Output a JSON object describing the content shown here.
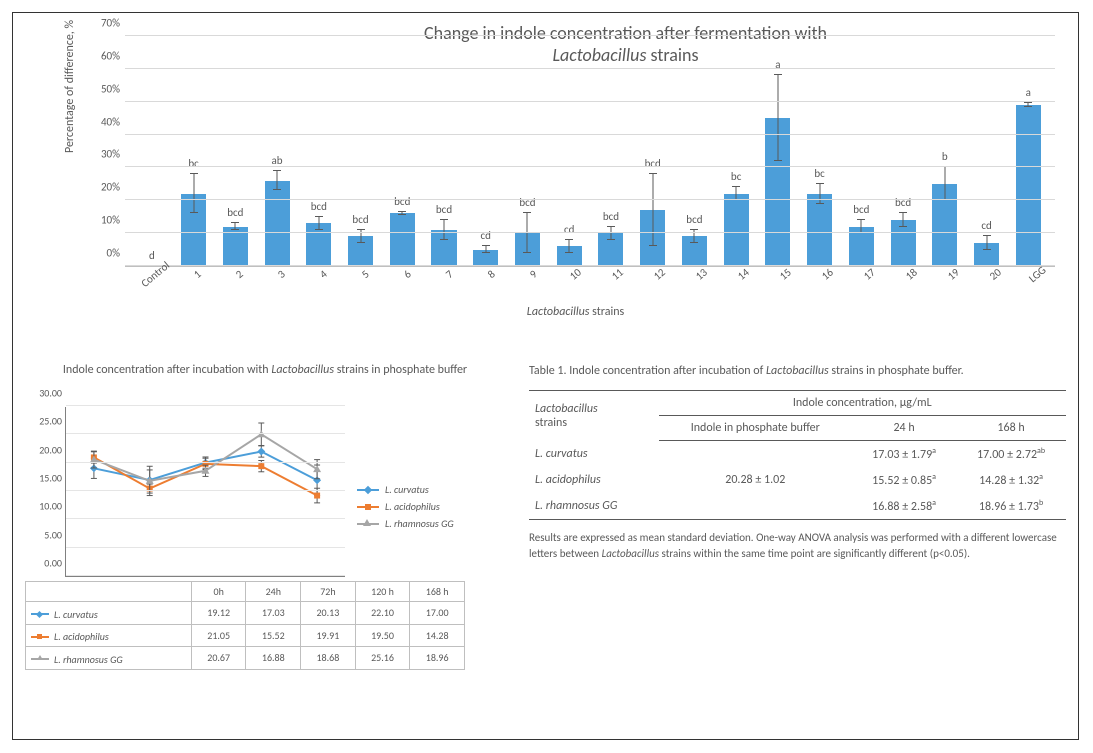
{
  "bar_chart": {
    "type": "bar",
    "title_line1": "Change in indole concentration after fermentation with",
    "title_line2_italic": "Lactobacillus",
    "title_line2_rest": " strains",
    "title_fontsize": 18,
    "y_axis_title": "Percentage of difference, %",
    "x_axis_title_italic": "Lactobacillus",
    "x_axis_title_rest": " strains",
    "ylim": [
      0,
      70
    ],
    "ytick_step": 10,
    "ytick_format_suffix": "%",
    "bar_color": "#4c9ed9",
    "error_color": "#595959",
    "grid_color": "#d9d9d9",
    "axis_color": "#808080",
    "sig_fontsize": 11,
    "categories": [
      "Control",
      "1",
      "2",
      "3",
      "4",
      "5",
      "6",
      "7",
      "8",
      "9",
      "10",
      "11",
      "12",
      "13",
      "14",
      "15",
      "16",
      "17",
      "18",
      "19",
      "20",
      "LGG"
    ],
    "values": [
      0,
      22,
      12,
      26,
      13,
      9,
      16,
      11,
      5,
      10,
      6,
      10,
      17,
      9,
      22,
      45,
      22,
      12,
      14,
      25,
      7,
      49
    ],
    "err": [
      0,
      6,
      1,
      3,
      2,
      2,
      0.5,
      3,
      1,
      6,
      2,
      2,
      11,
      2,
      2,
      13,
      3,
      2,
      2,
      5,
      2,
      0.5
    ],
    "sig_labels": [
      "d",
      "bc",
      "bcd",
      "ab",
      "bcd",
      "bcd",
      "bcd",
      "bcd",
      "cd",
      "bcd",
      "cd",
      "bcd",
      "bcd",
      "bcd",
      "bc",
      "a",
      "bc",
      "bcd",
      "bcd",
      "b",
      "cd",
      "a"
    ]
  },
  "line_chart": {
    "type": "line",
    "title_pre": "Indole concentration after incubation with ",
    "title_italic": "Lactobacillus",
    "title_post": " strains in phosphate buffer",
    "ylim": [
      0,
      30
    ],
    "ytick_step": 5,
    "grid_color": "#e5e5e5",
    "axis_color": "#808080",
    "x_labels": [
      "0h",
      "24h",
      "72h",
      "120 h",
      "168 h"
    ],
    "series": [
      {
        "name_italic": "L. curvatus",
        "color": "#4c9ed9",
        "marker": "diamond",
        "y": [
          19.12,
          17.03,
          20.13,
          22.1,
          17.0
        ],
        "err": [
          1.8,
          1.8,
          1,
          1,
          2.7
        ]
      },
      {
        "name_italic": "L. acidophilus",
        "color": "#ed7d31",
        "marker": "square",
        "y": [
          21.05,
          15.52,
          19.91,
          19.5,
          14.28
        ],
        "err": [
          1,
          0.8,
          1,
          1,
          1.3
        ]
      },
      {
        "name_italic": "L. rhamnosus GG",
        "color": "#a6a6a6",
        "marker": "triangle",
        "y": [
          20.67,
          16.88,
          18.68,
          25.16,
          18.96
        ],
        "err": [
          1.5,
          2.6,
          1,
          2,
          1.7
        ]
      }
    ]
  },
  "data_table_below_linechart": {
    "columns": [
      "",
      "0h",
      "24h",
      "72h",
      "120 h",
      "168 h"
    ],
    "rows": [
      {
        "label_italic": "L. curvatus",
        "color": "#4c9ed9",
        "marker": "diamond",
        "cells": [
          "19.12",
          "17.03",
          "20.13",
          "22.10",
          "17.00"
        ]
      },
      {
        "label_italic": "L. acidophilus",
        "color": "#ed7d31",
        "marker": "square",
        "cells": [
          "21.05",
          "15.52",
          "19.91",
          "19.50",
          "14.28"
        ]
      },
      {
        "label_italic": "L. rhamnosus GG",
        "color": "#a6a6a6",
        "marker": "triangle",
        "cells": [
          "20.67",
          "16.88",
          "18.68",
          "25.16",
          "18.96"
        ]
      }
    ]
  },
  "right_table": {
    "caption_pre": "Table 1. Indole concentration after incubation of ",
    "caption_italic": "Lactobacillus",
    "caption_post": " strains in phosphate buffer.",
    "col_strain_italic": "Lactobacillus",
    "col_strain_rest": " strains",
    "col_group_header": "Indole concentration, µg/mL",
    "subcols": [
      "Indole in phosphate buffer",
      "24 h",
      "168 h"
    ],
    "buffer_value": "20.28 ± 1.02",
    "rows": [
      {
        "name_italic": "L. curvatus",
        "v24": "17.03 ± 1.79",
        "s24": "a",
        "v168": "17.00 ± 2.72",
        "s168": "ab"
      },
      {
        "name_italic": "L. acidophilus",
        "v24": "15.52 ± 0.85",
        "s24": "a",
        "v168": "14.28 ± 1.32",
        "s168": "a"
      },
      {
        "name_italic": "L. rhamnosus GG",
        "v24": "16.88 ± 2.58",
        "s24": "a",
        "v168": "18.96 ± 1.73",
        "s168": "b"
      }
    ],
    "footnote_parts": {
      "p1": "Results are expressed as mean   standard deviation. One-way ANOVA analysis was performed with a different lowercase letters between ",
      "italic": "Lactobacillus",
      "p2": " strains within the same time point are significantly different (p<0.05)."
    }
  }
}
